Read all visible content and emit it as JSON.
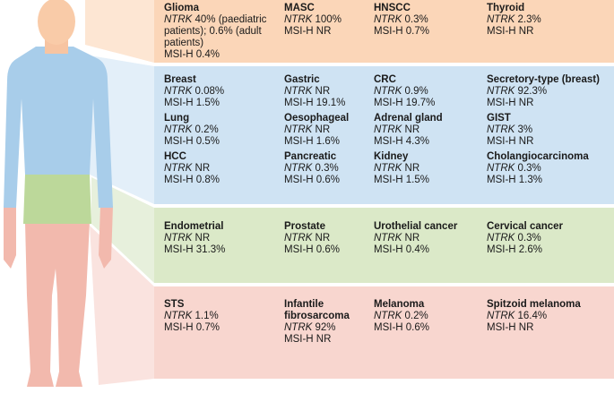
{
  "sections": [
    {
      "name": "head",
      "entries": [
        {
          "name": "Glioma",
          "ntrk_term": "NTRK",
          "ntrk": "40% (paediatric patients); 0.6% (adult patients)",
          "msi": "MSI-H 0.4%"
        },
        {
          "name": "MASC",
          "ntrk_term": "NTRK",
          "ntrk": "100%",
          "msi": "MSI-H NR"
        },
        {
          "name": "HNSCC",
          "ntrk_term": "NTRK",
          "ntrk": "0.3%",
          "msi": "MSI-H 0.7%"
        },
        {
          "name": "Thyroid",
          "ntrk_term": "NTRK",
          "ntrk": "2.3%",
          "msi": "MSI-H NR"
        }
      ]
    },
    {
      "name": "trunk",
      "entries": [
        {
          "name": "Breast",
          "ntrk_term": "NTRK",
          "ntrk": "0.08%",
          "msi": "MSI-H 1.5%"
        },
        {
          "name": "Gastric",
          "ntrk_term": "NTRK",
          "ntrk": "NR",
          "msi": "MSI-H 19.1%"
        },
        {
          "name": "CRC",
          "ntrk_term": "NTRK",
          "ntrk": "0.9%",
          "msi": "MSI-H 19.7%"
        },
        {
          "name": "Secretory-type (breast)",
          "ntrk_term": "NTRK",
          "ntrk": "92.3%",
          "msi": "MSI-H NR"
        },
        {
          "name": "Lung",
          "ntrk_term": "NTRK",
          "ntrk": "0.2%",
          "msi": "MSI-H 0.5%"
        },
        {
          "name": "Oesophageal",
          "ntrk_term": "NTRK",
          "ntrk": "NR",
          "msi": "MSI-H 1.6%"
        },
        {
          "name": "Adrenal gland",
          "ntrk_term": "NTRK",
          "ntrk": "NR",
          "msi": "MSI-H 4.3%"
        },
        {
          "name": "GIST",
          "ntrk_term": "NTRK",
          "ntrk": "3%",
          "msi": "MSI-H NR"
        },
        {
          "name": "HCC",
          "ntrk_term": "NTRK",
          "ntrk": "NR",
          "msi": "MSI-H 0.8%"
        },
        {
          "name": "Pancreatic",
          "ntrk_term": "NTRK",
          "ntrk": "0.3%",
          "msi": "MSI-H 0.6%"
        },
        {
          "name": "Kidney",
          "ntrk_term": "NTRK",
          "ntrk": "NR",
          "msi": "MSI-H 1.5%"
        },
        {
          "name": "Cholangiocarcinoma",
          "ntrk_term": "NTRK",
          "ntrk": "0.3%",
          "msi": "MSI-H 1.3%"
        }
      ]
    },
    {
      "name": "pelvis",
      "entries": [
        {
          "name": "Endometrial",
          "ntrk_term": "NTRK",
          "ntrk": "NR",
          "msi": "MSI-H 31.3%"
        },
        {
          "name": "Prostate",
          "ntrk_term": "NTRK",
          "ntrk": "NR",
          "msi": "MSI-H 0.6%"
        },
        {
          "name": "Urothelial  cancer",
          "ntrk_term": "NTRK",
          "ntrk": "NR",
          "msi": "MSI-H 0.4%"
        },
        {
          "name": "Cervical cancer",
          "ntrk_term": "NTRK",
          "ntrk": "0.3%",
          "msi": "MSI-H 2.6%"
        }
      ]
    },
    {
      "name": "legs",
      "entries": [
        {
          "name": "STS",
          "ntrk_term": "NTRK",
          "ntrk": "1.1%",
          "msi": "MSI-H 0.7%"
        },
        {
          "name": "Infantile fibrosarcoma",
          "ntrk_term": "NTRK",
          "ntrk": "92%",
          "msi": "MSI-H NR"
        },
        {
          "name": "Melanoma",
          "ntrk_term": "NTRK",
          "ntrk": "0.2%",
          "msi": "MSI-H 0.6%"
        },
        {
          "name": "Spitzoid melanoma",
          "ntrk_term": "NTRK",
          "ntrk": "16.4%",
          "msi": "MSI-H NR"
        }
      ]
    }
  ]
}
